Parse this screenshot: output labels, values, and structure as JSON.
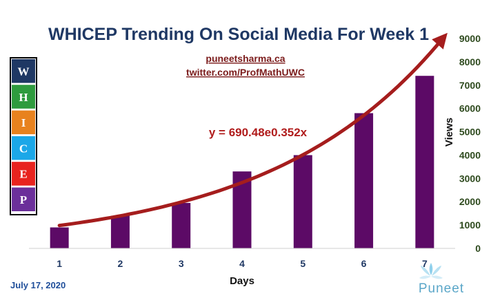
{
  "chart_data": {
    "type": "bar",
    "title": "WHICEP Trending On Social Media For Week 1",
    "xlabel": "Days",
    "ylabel": "Views",
    "categories": [
      "1",
      "2",
      "3",
      "4",
      "5",
      "6",
      "7"
    ],
    "series": [
      {
        "values": [
          900,
          1400,
          1950,
          3300,
          4000,
          5800,
          7400
        ]
      }
    ],
    "ylim": [
      0,
      9000
    ],
    "yticks": [
      0,
      1000,
      2000,
      3000,
      4000,
      5000,
      6000,
      7000,
      8000,
      9000
    ],
    "yaxis_position": "right",
    "grid": false,
    "legend": "none",
    "trendline": {
      "type": "exponential",
      "equation": "y = 690.48e0.352x",
      "a": 690.48,
      "b": 0.352,
      "x_range": [
        1,
        7.3
      ]
    },
    "colors": {
      "bar": "#5c0a66",
      "trend": "#a51d1d",
      "title": "#1f3864"
    }
  },
  "links": {
    "website": "puneetsharma.ca",
    "twitter": "twitter.com/ProfMathUWC"
  },
  "date": "July 17, 2020",
  "acronym": {
    "letters": [
      "W",
      "H",
      "I",
      "C",
      "E",
      "P"
    ],
    "colors": [
      "#1f3864",
      "#2e9b3e",
      "#e8821e",
      "#1ba7e8",
      "#e8231e",
      "#6b2f9a"
    ]
  },
  "logo": {
    "text": "Puneet",
    "icon": "lotus-icon"
  }
}
